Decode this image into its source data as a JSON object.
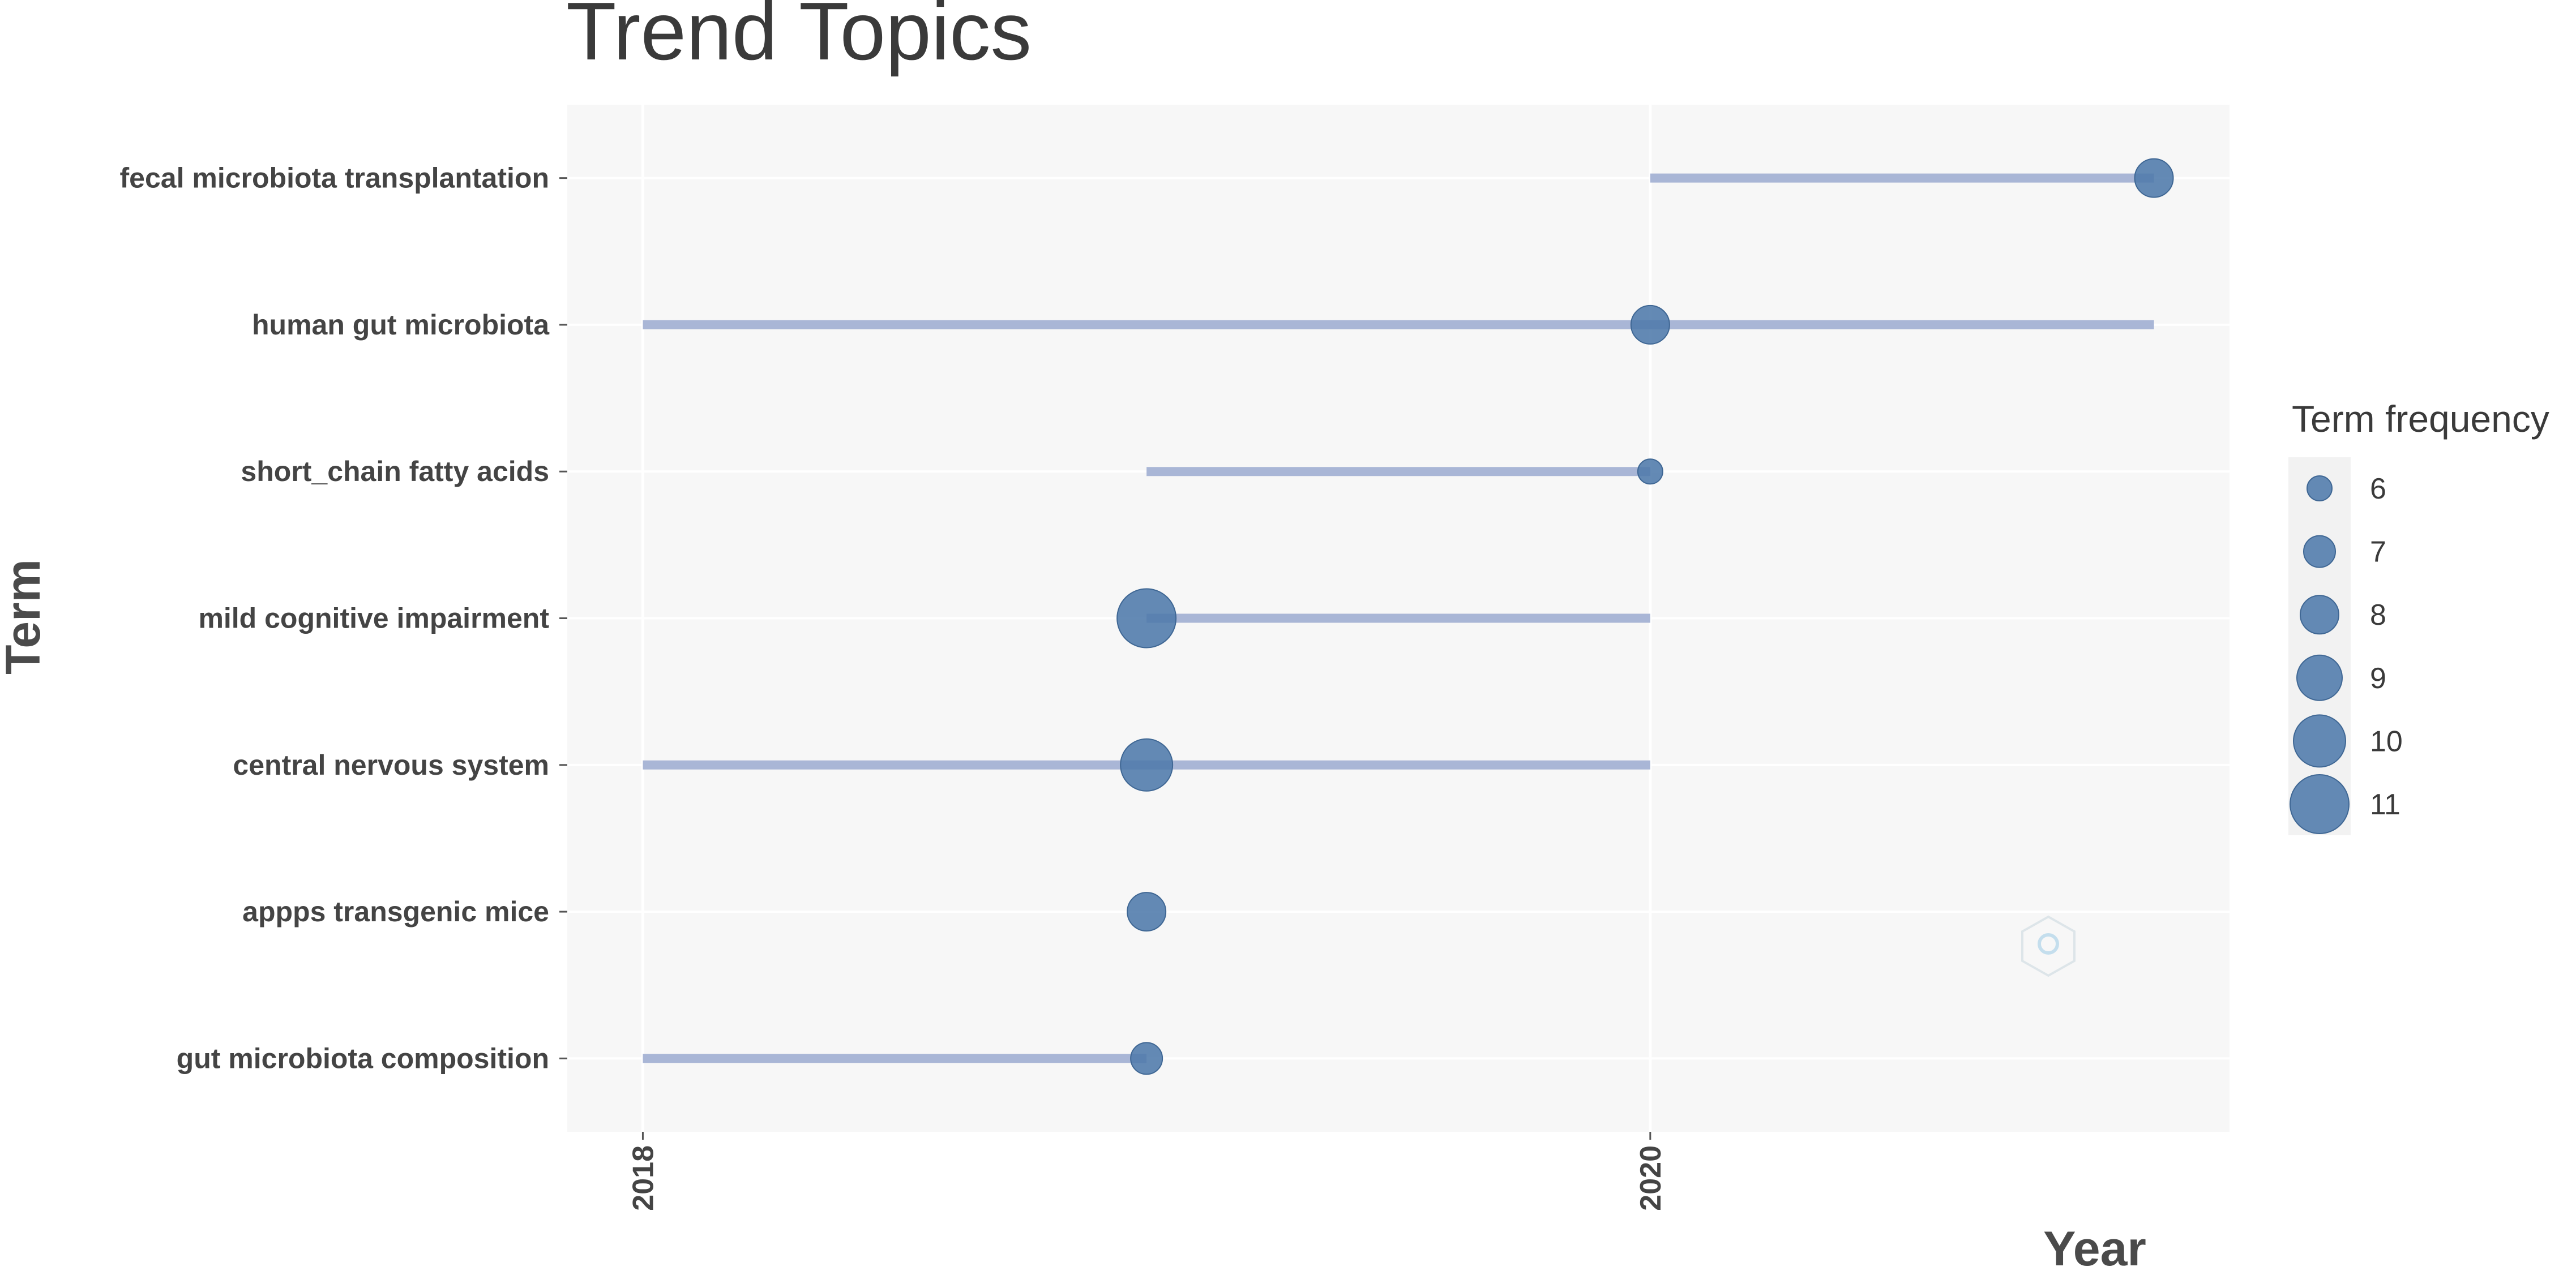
{
  "chart_data": {
    "type": "scatter",
    "title": "Trend Topics",
    "xlabel": "Year",
    "ylabel": "Term",
    "xlim": [
      2017.85,
      2021.15
    ],
    "x_ticks": [
      "2018",
      "2020"
    ],
    "grid": true,
    "legend_position": "right",
    "legend_title": "Term frequency",
    "legend_values": [
      6,
      7,
      8,
      9,
      10,
      11
    ],
    "point_color": "#4f7aab",
    "segment_color": "#a9b6d6",
    "panel_background": "#f7f7f7",
    "terms": [
      {
        "term": "fecal microbiota transplantation",
        "year_start": 2020,
        "year_end": 2021,
        "median_year": 2021,
        "frequency": 8
      },
      {
        "term": "human gut microbiota",
        "year_start": 2018,
        "year_end": 2021,
        "median_year": 2020,
        "frequency": 8
      },
      {
        "term": "short_chain fatty acids",
        "year_start": 2019,
        "year_end": 2020,
        "median_year": 2020,
        "frequency": 6
      },
      {
        "term": "mild cognitive impairment",
        "year_start": 2019,
        "year_end": 2020,
        "median_year": 2019,
        "frequency": 11
      },
      {
        "term": "central nervous system",
        "year_start": 2018,
        "year_end": 2020,
        "median_year": 2019,
        "frequency": 10
      },
      {
        "term": "appps transgenic mice",
        "year_start": 2019,
        "year_end": 2019,
        "median_year": 2019,
        "frequency": 8
      },
      {
        "term": "gut microbiota composition",
        "year_start": 2018,
        "year_end": 2019,
        "median_year": 2019,
        "frequency": 7
      }
    ]
  }
}
